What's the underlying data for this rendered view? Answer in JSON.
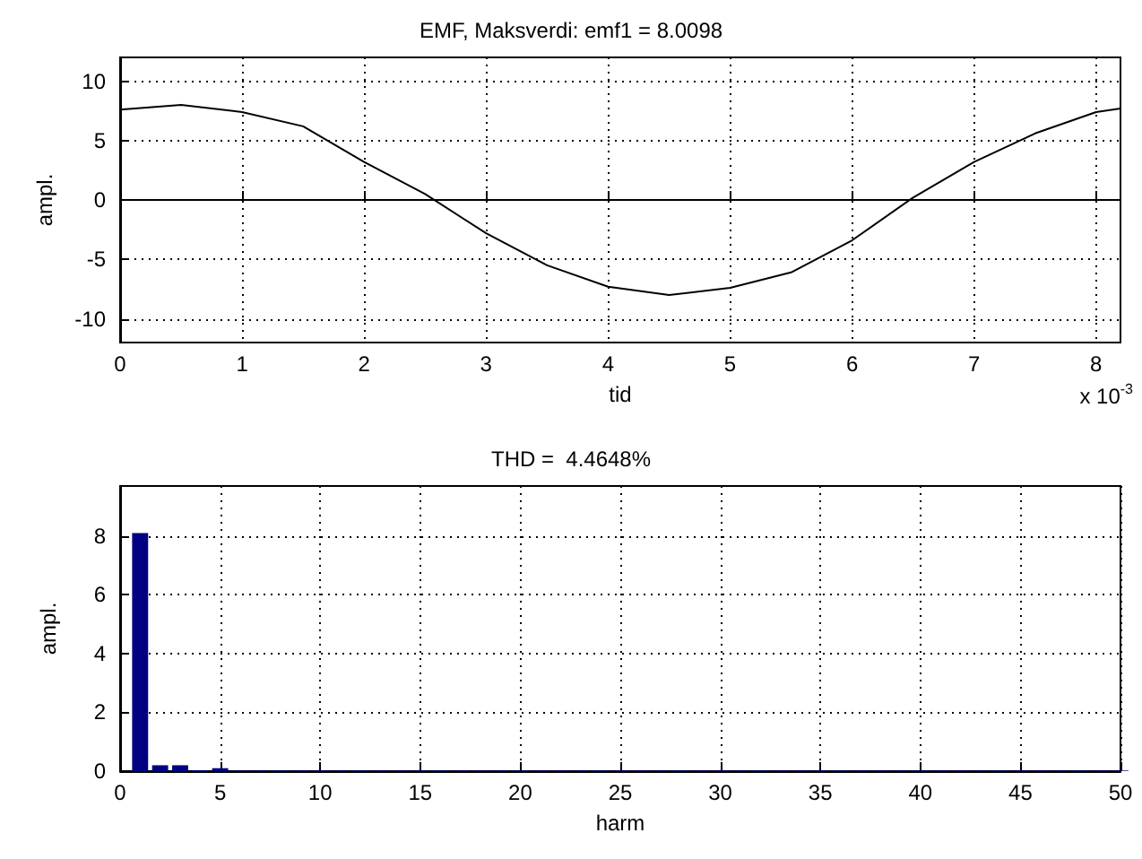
{
  "chart_data": [
    {
      "type": "line",
      "title": "EMF, Maksverdi: emf1 = 8.0098",
      "xlabel": "tid",
      "ylabel": "ampl.",
      "annotations": [
        "x 10$^{-3}$"
      ],
      "series": [
        {
          "color": "#000000",
          "x": [
            0,
            0.5,
            1,
            1.5,
            2,
            2.5,
            3,
            3.5,
            4,
            4.5,
            5,
            5.5,
            6,
            6.5,
            7,
            7.5,
            8,
            8.2
          ],
          "values": [
            7.6,
            8.0,
            7.4,
            6.2,
            3.2,
            0.5,
            -2.8,
            -5.5,
            -7.3,
            -8.0,
            -7.4,
            -6.1,
            -3.4,
            0.2,
            3.2,
            5.6,
            7.4,
            7.7
          ]
        }
      ],
      "xlim": [
        0,
        8.2
      ],
      "xticks": [
        0,
        1,
        2,
        3,
        4,
        5,
        6,
        7,
        8
      ],
      "ylim": [
        -12,
        12
      ],
      "yticks": [
        -10,
        -5,
        0,
        5,
        10
      ],
      "grid": true
    },
    {
      "type": "bar",
      "title": "THD =  4.4648%",
      "xlabel": "harm",
      "ylabel": "ampl.",
      "x": [
        1,
        2,
        3,
        4,
        5,
        6,
        7,
        8,
        9,
        10,
        11,
        12,
        13,
        14,
        15,
        16,
        17,
        18,
        19,
        20,
        21,
        22,
        23,
        24,
        25,
        26,
        27,
        28,
        29,
        30,
        31,
        32,
        33,
        34,
        35,
        36,
        37,
        38,
        39,
        40,
        41,
        42,
        43,
        44,
        45,
        46,
        47,
        48,
        49,
        50
      ],
      "series": [
        {
          "color": "#000080",
          "values": [
            8.1,
            0.2,
            0.2,
            0.03,
            0.1,
            0.02,
            0.02,
            0.02,
            0.02,
            0.02,
            0.02,
            0.02,
            0.02,
            0.02,
            0.02,
            0.02,
            0.02,
            0.02,
            0.02,
            0.02,
            0.02,
            0.02,
            0.02,
            0.02,
            0.02,
            0.02,
            0.02,
            0.02,
            0.02,
            0.02,
            0.02,
            0.02,
            0.02,
            0.02,
            0.02,
            0.02,
            0.02,
            0.02,
            0.02,
            0.02,
            0.02,
            0.02,
            0.02,
            0.02,
            0.02,
            0.02,
            0.02,
            0.02,
            0.02,
            0.02
          ]
        }
      ],
      "xlim": [
        0,
        50
      ],
      "xticks": [
        0,
        5,
        10,
        15,
        20,
        25,
        30,
        35,
        40,
        45,
        50
      ],
      "ylim": [
        0,
        9.7
      ],
      "yticks": [
        0,
        2,
        4,
        6,
        8
      ],
      "grid": true
    }
  ]
}
